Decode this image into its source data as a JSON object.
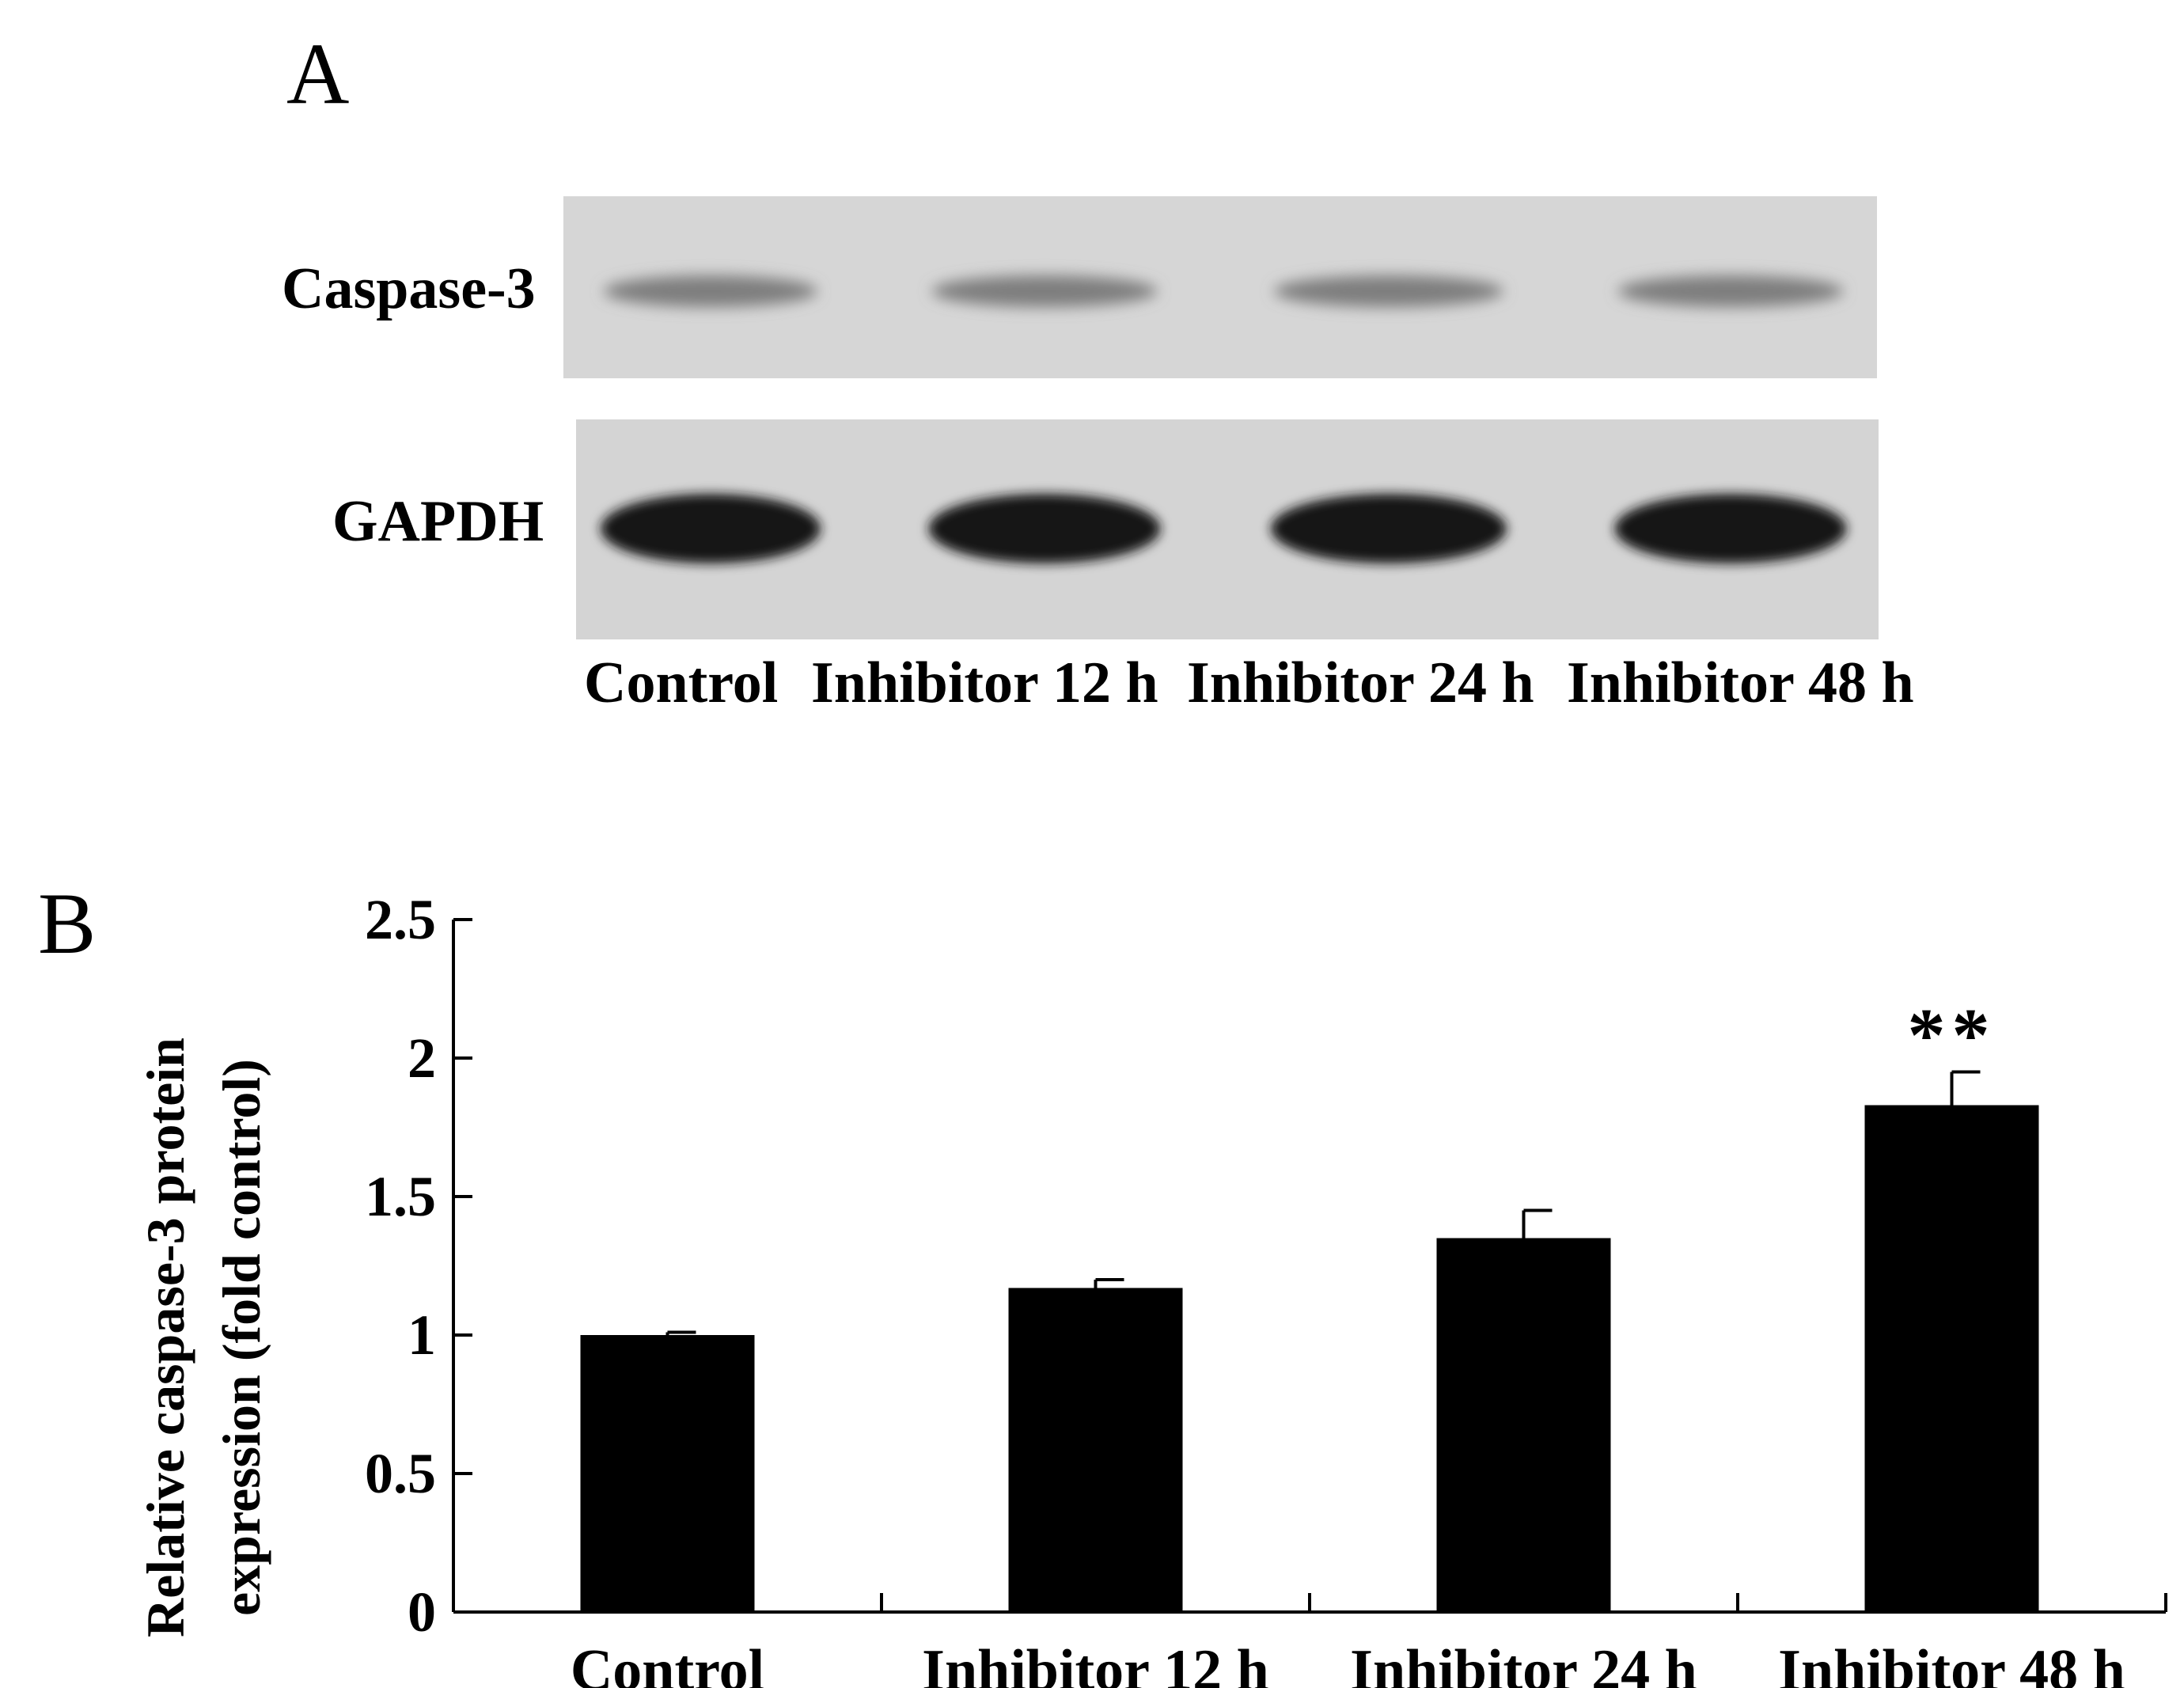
{
  "figure": {
    "panel_a_letter": "A",
    "panel_b_letter": "B"
  },
  "blot": {
    "rows": [
      {
        "label": "Caspase-3",
        "band_intensity": "faint"
      },
      {
        "label": "GAPDH",
        "band_intensity": "strong"
      }
    ],
    "lanes": [
      "Control",
      "Inhibitor 12 h",
      "Inhibitor 24 h",
      "Inhibitor 48 h"
    ]
  },
  "chart_data": {
    "type": "bar",
    "title": "",
    "xlabel": "",
    "ylabel_line1": "Relative caspase-3 protein",
    "ylabel_line2": "expression  (fold control)",
    "categories": [
      "Control",
      "Inhibitor 12 h",
      "Inhibitor 24 h",
      "Inhibitor 48 h"
    ],
    "values": [
      1.0,
      1.17,
      1.35,
      1.83
    ],
    "errors": [
      0.01,
      0.03,
      0.1,
      0.12
    ],
    "annotations": [
      {
        "category_index": 3,
        "text": "**"
      }
    ],
    "ylim": [
      0,
      2.5
    ],
    "yticks": [
      0,
      0.5,
      1,
      1.5,
      2,
      2.5
    ],
    "ytick_labels": [
      "0",
      "0.5",
      "1",
      "1.5",
      "2",
      "2.5"
    ],
    "bar_color": "#000000",
    "grid": false
  }
}
